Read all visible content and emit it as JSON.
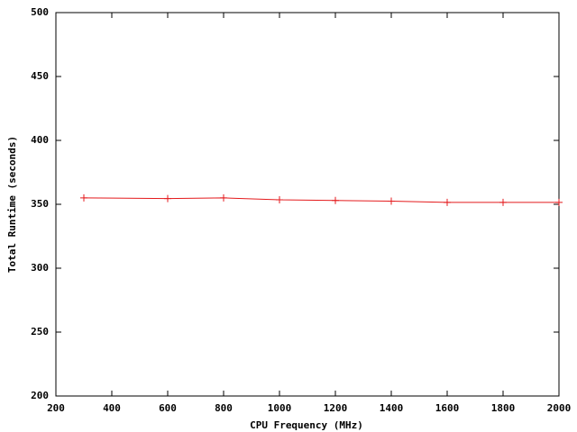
{
  "chart_data": {
    "type": "line",
    "xlabel": "CPU Frequency (MHz)",
    "ylabel": "Total Runtime (seconds)",
    "x": [
      300,
      600,
      800,
      1000,
      1200,
      1400,
      1600,
      1800,
      2000
    ],
    "series": [
      {
        "color": "#e41a1c",
        "values": [
          355,
          354.5,
          355,
          353.5,
          353,
          352.5,
          351.5,
          351.5,
          351.5
        ]
      }
    ],
    "xlim": [
      200,
      2000
    ],
    "xticks": [
      200,
      400,
      600,
      800,
      1000,
      1200,
      1400,
      1600,
      1800,
      2000
    ],
    "ylim": [
      200,
      500
    ],
    "yticks": [
      200,
      250,
      300,
      350,
      400,
      450,
      500
    ],
    "grid": false
  }
}
